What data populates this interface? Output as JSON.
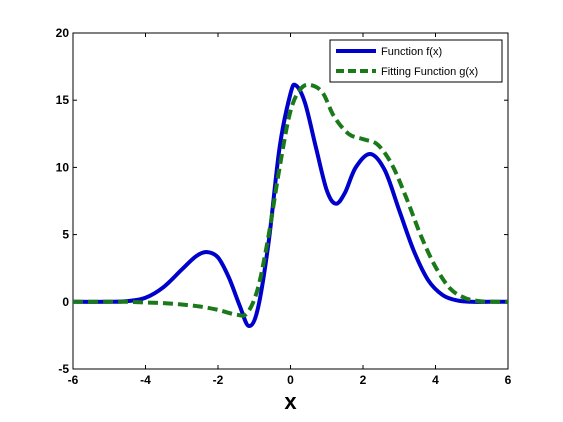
{
  "chart_data": {
    "type": "line",
    "title": "",
    "xlabel": "x",
    "ylabel": "",
    "xlim": [
      -6,
      6
    ],
    "ylim": [
      -5,
      20
    ],
    "xticks": [
      -6,
      -4,
      -2,
      0,
      2,
      4,
      6
    ],
    "yticks": [
      -5,
      0,
      5,
      10,
      15,
      20
    ],
    "grid": false,
    "legend_placement": "top-right",
    "series": [
      {
        "name": "Function f(x)",
        "color": "#0000cc",
        "style": "solid",
        "x": [
          -6,
          -5,
          -4.5,
          -4,
          -3.5,
          -3,
          -2.6,
          -2.3,
          -2,
          -1.7,
          -1.4,
          -1.15,
          -0.9,
          -0.6,
          -0.3,
          0,
          0.15,
          0.4,
          0.7,
          1,
          1.25,
          1.5,
          1.8,
          2.2,
          2.6,
          3,
          3.4,
          3.8,
          4.2,
          4.6,
          5,
          5.5,
          6
        ],
        "y": [
          0,
          0,
          0.05,
          0.3,
          1.1,
          2.4,
          3.4,
          3.7,
          3.3,
          1.8,
          -0.3,
          -1.8,
          -0.5,
          4.5,
          11.5,
          15.5,
          16.1,
          14.8,
          11.5,
          8.3,
          7.3,
          8.1,
          10.0,
          11.0,
          9.8,
          6.8,
          3.8,
          1.6,
          0.5,
          0.1,
          0,
          0,
          0
        ]
      },
      {
        "name": "Fitting Function g(x)",
        "color": "#1a7a1a",
        "style": "dashed",
        "x": [
          -6,
          -5,
          -4.5,
          -4,
          -3.5,
          -3,
          -2.5,
          -2,
          -1.5,
          -1.2,
          -0.9,
          -0.6,
          -0.3,
          0,
          0.3,
          0.6,
          0.9,
          1.2,
          1.6,
          2,
          2.4,
          2.8,
          3.2,
          3.6,
          4,
          4.4,
          4.8,
          5.2,
          5.6,
          6
        ],
        "y": [
          0,
          0,
          0,
          -0.05,
          -0.1,
          -0.2,
          -0.35,
          -0.6,
          -0.95,
          -0.85,
          1.0,
          5.0,
          10.0,
          14.2,
          15.9,
          16.1,
          15.5,
          13.8,
          12.5,
          12.1,
          11.7,
          10.2,
          7.7,
          4.9,
          2.6,
          1.0,
          0.3,
          0.05,
          0,
          0
        ]
      }
    ]
  }
}
